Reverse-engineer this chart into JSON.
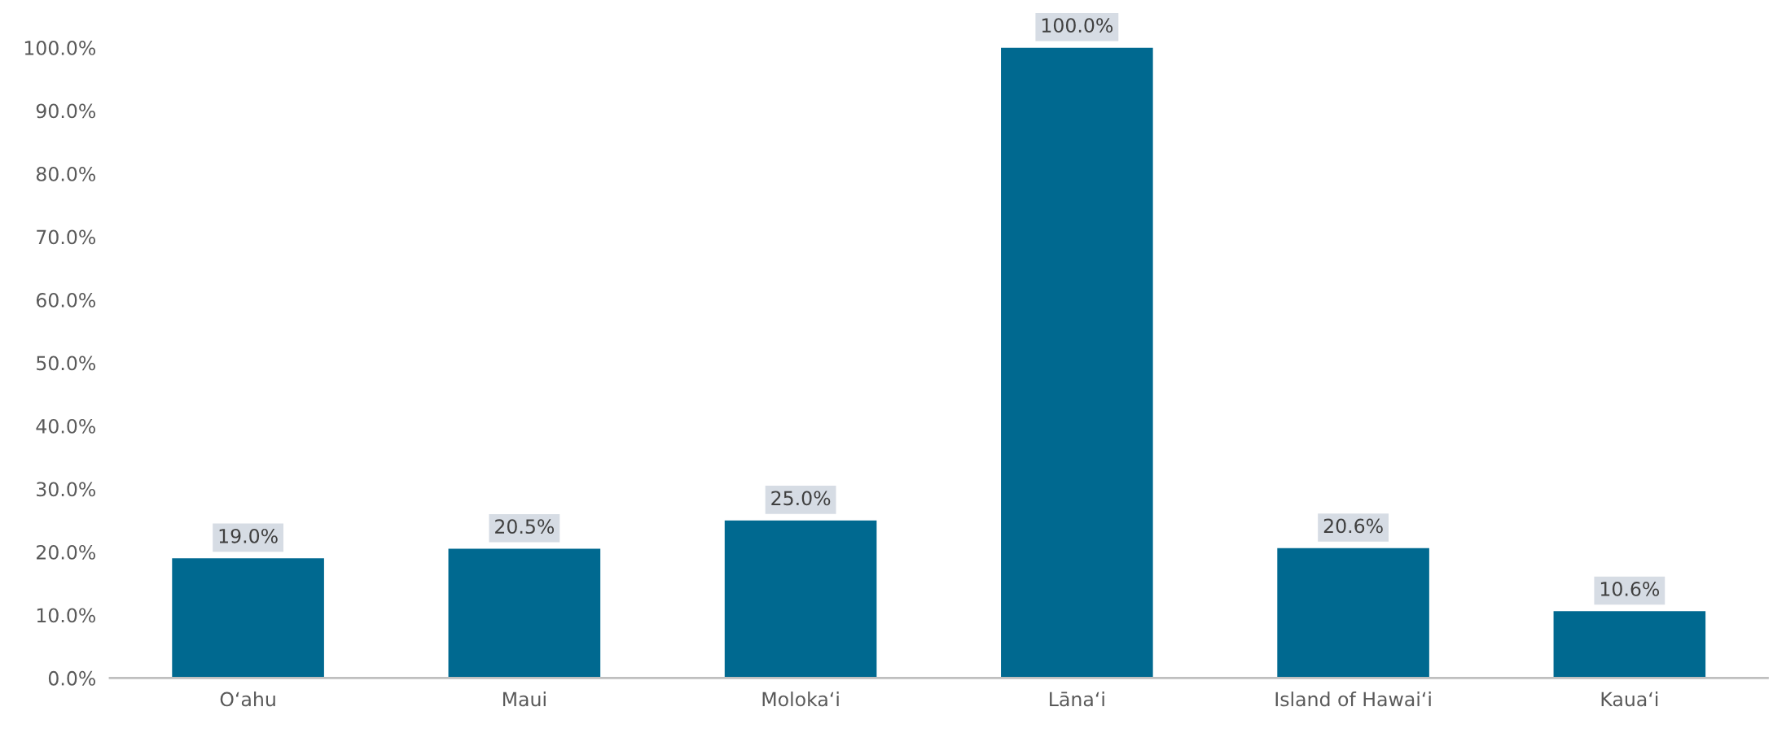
{
  "chart_data": {
    "type": "bar",
    "categories": [
      "O‘ahu",
      "Maui",
      "Moloka‘i",
      "Lāna‘i",
      "Island of Hawai‘i",
      "Kaua‘i"
    ],
    "values": [
      19.0,
      20.5,
      25.0,
      100.0,
      20.6,
      10.6
    ],
    "value_labels": [
      "19.0%",
      "20.5%",
      "25.0%",
      "100.0%",
      "20.6%",
      "10.6%"
    ],
    "color": "#006990",
    "ylim": [
      0,
      100
    ],
    "yticks": [
      {
        "value": 0,
        "label": "0.0%"
      },
      {
        "value": 10,
        "label": "10.0%"
      },
      {
        "value": 20,
        "label": "20.0%"
      },
      {
        "value": 30,
        "label": "30.0%"
      },
      {
        "value": 40,
        "label": "40.0%"
      },
      {
        "value": 50,
        "label": "50.0%"
      },
      {
        "value": 60,
        "label": "60.0%"
      },
      {
        "value": 70,
        "label": "70.0%"
      },
      {
        "value": 80,
        "label": "80.0%"
      },
      {
        "value": 90,
        "label": "90.0%"
      },
      {
        "value": 100,
        "label": "100.0%"
      }
    ],
    "grid": false,
    "legend": false
  }
}
